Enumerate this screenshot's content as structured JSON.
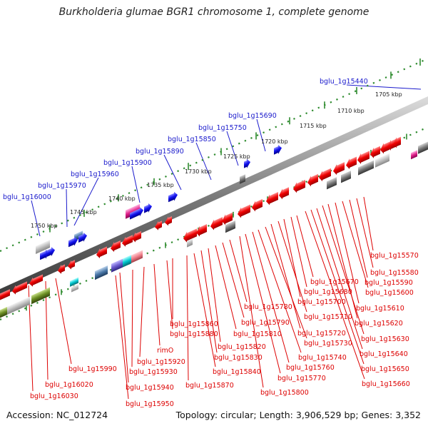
{
  "title": "Burkholderia glumae BGR1 chromosome 1, complete genome",
  "accession": "Accession: NC_012724",
  "topology": "Topology: circular; Length: 3,906,529 bp; Genes: 3,352",
  "colors": {
    "forward_gene": "#1a1acc",
    "reverse_gene": "#dd0000",
    "backbone": "#808080",
    "tick": "#2e8b2e",
    "ticklabel": "#222222"
  },
  "ticks": [
    "1705 kbp",
    "1710 kbp",
    "1715 kbp",
    "1720 kbp",
    "1725 kbp",
    "1730 kbp",
    "1735 kbp",
    "1740 kbp",
    "1745 kbp",
    "1750 kbp"
  ],
  "top_labels": [
    "bglu_1g15440",
    "bglu_1g15690",
    "bglu_1g15750",
    "bglu_1g15850",
    "bglu_1g15890",
    "bglu_1g15900",
    "bglu_1g15960",
    "bglu_1g15970",
    "bglu_1g16000"
  ],
  "bottom_labels": [
    "bglu_1g15570",
    "bglu_1g15580",
    "bglu_1g15590",
    "bglu_1g15600",
    "bglu_1g15610",
    "bglu_1g15620",
    "bglu_1g15630",
    "bglu_1g15640",
    "bglu_1g15650",
    "bglu_1g15660",
    "bglu_1g15670",
    "bglu_1g15680",
    "bglu_1g15700",
    "bglu_1g15710",
    "bglu_1g15720",
    "bglu_1g15730",
    "bglu_1g15740",
    "bglu_1g15760",
    "bglu_1g15770",
    "bglu_1g15800",
    "bglu_1g15780",
    "bglu_1g15790",
    "bglu_1g15810",
    "bglu_1g15820",
    "bglu_1g15830",
    "bglu_1g15840",
    "bglu_1g15870",
    "bglu_1g15860",
    "bglu_1g15880",
    "rimO",
    "bglu_1g15920",
    "bglu_1g15930",
    "bglu_1g15940",
    "bglu_1g15950",
    "bglu_1g15990",
    "bglu_1g16020",
    "bglu_1g16030"
  ]
}
